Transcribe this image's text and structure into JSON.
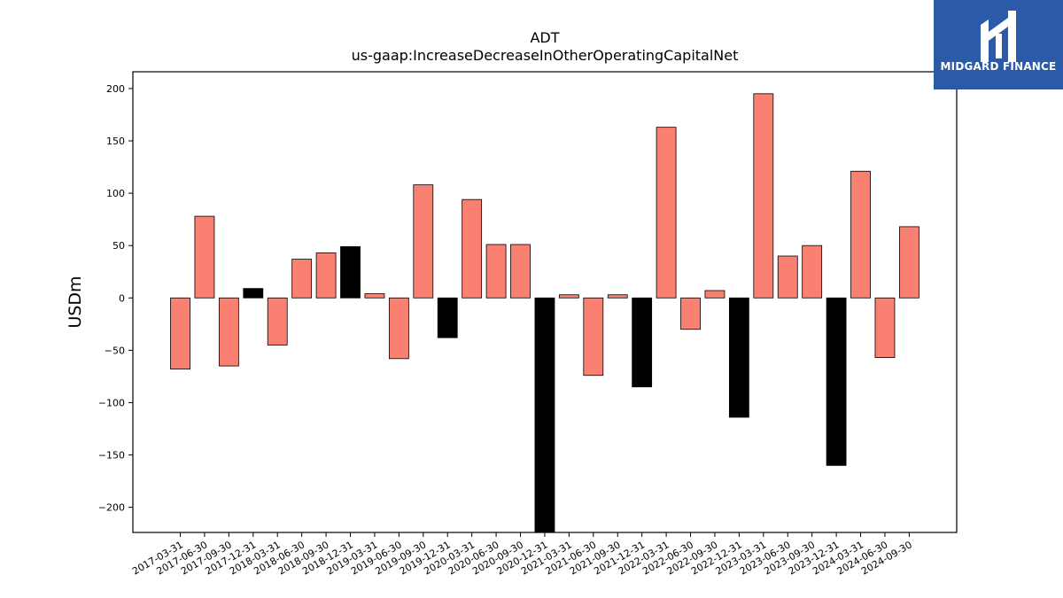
{
  "chart_data": {
    "type": "bar",
    "title": "ADT",
    "subtitle": "us-gaap:IncreaseDecreaseInOtherOperatingCapitalNet",
    "ylabel": "USDm",
    "xlabel": "",
    "ylim": [
      -224,
      216
    ],
    "yticks": [
      200,
      150,
      100,
      50,
      0,
      -50,
      -100,
      -150,
      -200
    ],
    "ytick_labels": [
      "200",
      "150",
      "100",
      "50",
      "0",
      "−50",
      "−100",
      "−150",
      "−200"
    ],
    "grid": false,
    "categories": [
      "2017-03-31",
      "2017-06-30",
      "2017-09-30",
      "2017-12-31",
      "2018-03-31",
      "2018-06-30",
      "2018-09-30",
      "2018-12-31",
      "2019-03-31",
      "2019-06-30",
      "2019-09-30",
      "2019-12-31",
      "2020-03-31",
      "2020-06-30",
      "2020-09-30",
      "2020-12-31",
      "2021-03-31",
      "2021-06-30",
      "2021-09-30",
      "2021-12-31",
      "2022-03-31",
      "2022-06-30",
      "2022-09-30",
      "2022-12-31",
      "2023-03-31",
      "2023-06-30",
      "2023-09-30",
      "2023-12-31",
      "2024-03-31",
      "2024-06-30",
      "2024-09-30"
    ],
    "values": [
      -68,
      78,
      -65,
      9,
      -45,
      37,
      43,
      49,
      4,
      -58,
      108,
      -38,
      94,
      51,
      51,
      -230,
      3,
      -74,
      3,
      -85,
      163,
      -30,
      7,
      -114,
      195,
      40,
      50,
      -160,
      121,
      -57,
      68
    ],
    "bar_colors": [
      "#fa8072",
      "#fa8072",
      "#fa8072",
      "#000000",
      "#fa8072",
      "#fa8072",
      "#fa8072",
      "#000000",
      "#fa8072",
      "#fa8072",
      "#fa8072",
      "#000000",
      "#fa8072",
      "#fa8072",
      "#fa8072",
      "#000000",
      "#fa8072",
      "#fa8072",
      "#fa8072",
      "#000000",
      "#fa8072",
      "#fa8072",
      "#fa8072",
      "#000000",
      "#fa8072",
      "#fa8072",
      "#fa8072",
      "#000000",
      "#fa8072",
      "#fa8072",
      "#fa8072"
    ]
  },
  "logo": {
    "text": "MIDGARD FINANCE",
    "background": "#2b5aa8"
  }
}
